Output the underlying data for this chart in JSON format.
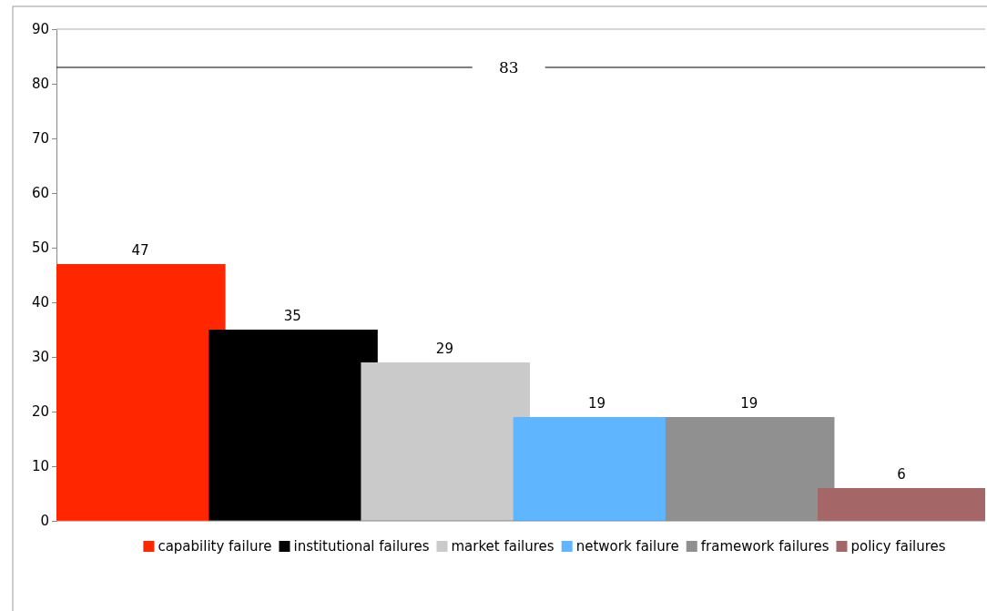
{
  "chart_data": {
    "type": "bar",
    "categories": [
      null
    ],
    "series": [
      {
        "name": "capability failure",
        "color": "#ff2600",
        "values": [
          47
        ]
      },
      {
        "name": "institutional failures",
        "color": "#000000",
        "values": [
          35
        ]
      },
      {
        "name": "market failures",
        "color": "#cacaca",
        "values": [
          29
        ]
      },
      {
        "name": "network failure",
        "color": "#5fb5fe",
        "values": [
          19
        ]
      },
      {
        "name": "framework failures",
        "color": "#909090",
        "values": [
          19
        ]
      },
      {
        "name": "policy failures",
        "color": "#a46666",
        "values": [
          6
        ]
      }
    ],
    "ylim": [
      0,
      90
    ],
    "yticks": [
      0,
      10,
      20,
      30,
      40,
      50,
      60,
      70,
      80,
      90
    ],
    "ref_lines": [
      {
        "axis": "y",
        "value": 83,
        "label": "83"
      }
    ],
    "data_labels": true,
    "legend": "bottom",
    "grid": false
  }
}
